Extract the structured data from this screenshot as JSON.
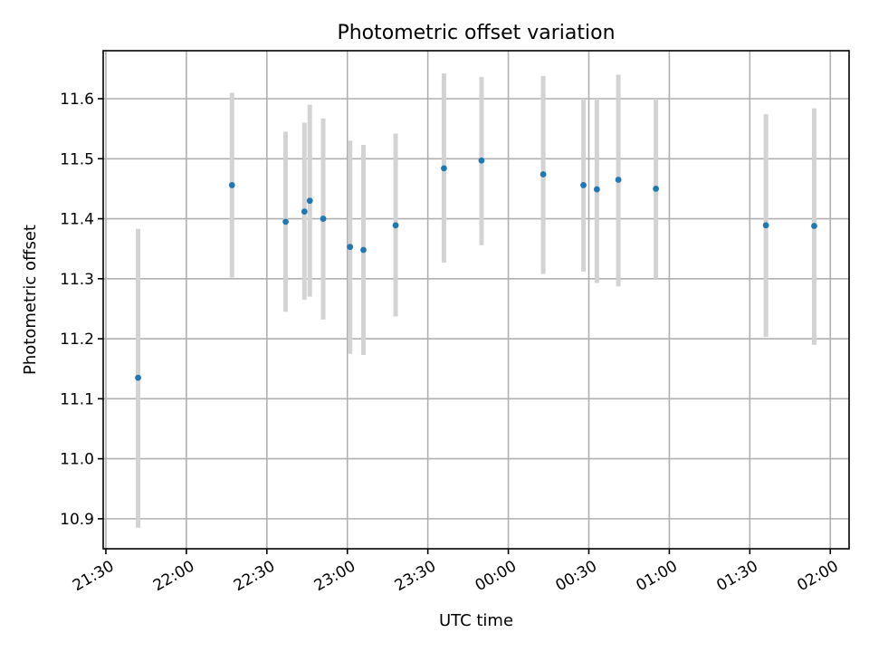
{
  "chart_data": {
    "type": "scatter",
    "title": "Photometric offset variation",
    "xlabel": "UTC time",
    "ylabel": "Photometric offset",
    "x_ticks": [
      "21:30",
      "22:00",
      "22:30",
      "23:00",
      "23:30",
      "00:00",
      "00:30",
      "01:00",
      "01:30",
      "02:00"
    ],
    "y_ticks": [
      "10.9",
      "11.0",
      "11.1",
      "11.2",
      "11.3",
      "11.4",
      "11.5",
      "11.6"
    ],
    "xlim": [
      "21:29",
      "02:07"
    ],
    "ylim": [
      10.85,
      11.68
    ],
    "grid": true,
    "series": [
      {
        "color": "#1f77b4",
        "errorbar_color": "#d3d3d3",
        "points": [
          {
            "x": "21:42",
            "y": 11.135,
            "ylow": 10.885,
            "yhigh": 11.383
          },
          {
            "x": "22:17",
            "y": 11.456,
            "ylow": 11.302,
            "yhigh": 11.61
          },
          {
            "x": "22:37",
            "y": 11.395,
            "ylow": 11.245,
            "yhigh": 11.545
          },
          {
            "x": "22:44",
            "y": 11.412,
            "ylow": 11.265,
            "yhigh": 11.56
          },
          {
            "x": "22:46",
            "y": 11.43,
            "ylow": 11.27,
            "yhigh": 11.59
          },
          {
            "x": "22:51",
            "y": 11.4,
            "ylow": 11.232,
            "yhigh": 11.567
          },
          {
            "x": "23:01",
            "y": 11.353,
            "ylow": 11.175,
            "yhigh": 11.53
          },
          {
            "x": "23:06",
            "y": 11.348,
            "ylow": 11.173,
            "yhigh": 11.523
          },
          {
            "x": "23:18",
            "y": 11.389,
            "ylow": 11.237,
            "yhigh": 11.542
          },
          {
            "x": "23:36",
            "y": 11.484,
            "ylow": 11.327,
            "yhigh": 11.642
          },
          {
            "x": "23:50",
            "y": 11.497,
            "ylow": 11.356,
            "yhigh": 11.636
          },
          {
            "x": "00:13",
            "y": 11.474,
            "ylow": 11.308,
            "yhigh": 11.638
          },
          {
            "x": "00:28",
            "y": 11.456,
            "ylow": 11.312,
            "yhigh": 11.6
          },
          {
            "x": "00:33",
            "y": 11.449,
            "ylow": 11.293,
            "yhigh": 11.6
          },
          {
            "x": "00:41",
            "y": 11.465,
            "ylow": 11.287,
            "yhigh": 11.64
          },
          {
            "x": "00:55",
            "y": 11.45,
            "ylow": 11.3,
            "yhigh": 11.6
          },
          {
            "x": "01:36",
            "y": 11.389,
            "ylow": 11.203,
            "yhigh": 11.574
          },
          {
            "x": "01:54",
            "y": 11.388,
            "ylow": 11.19,
            "yhigh": 11.584
          }
        ]
      }
    ]
  }
}
